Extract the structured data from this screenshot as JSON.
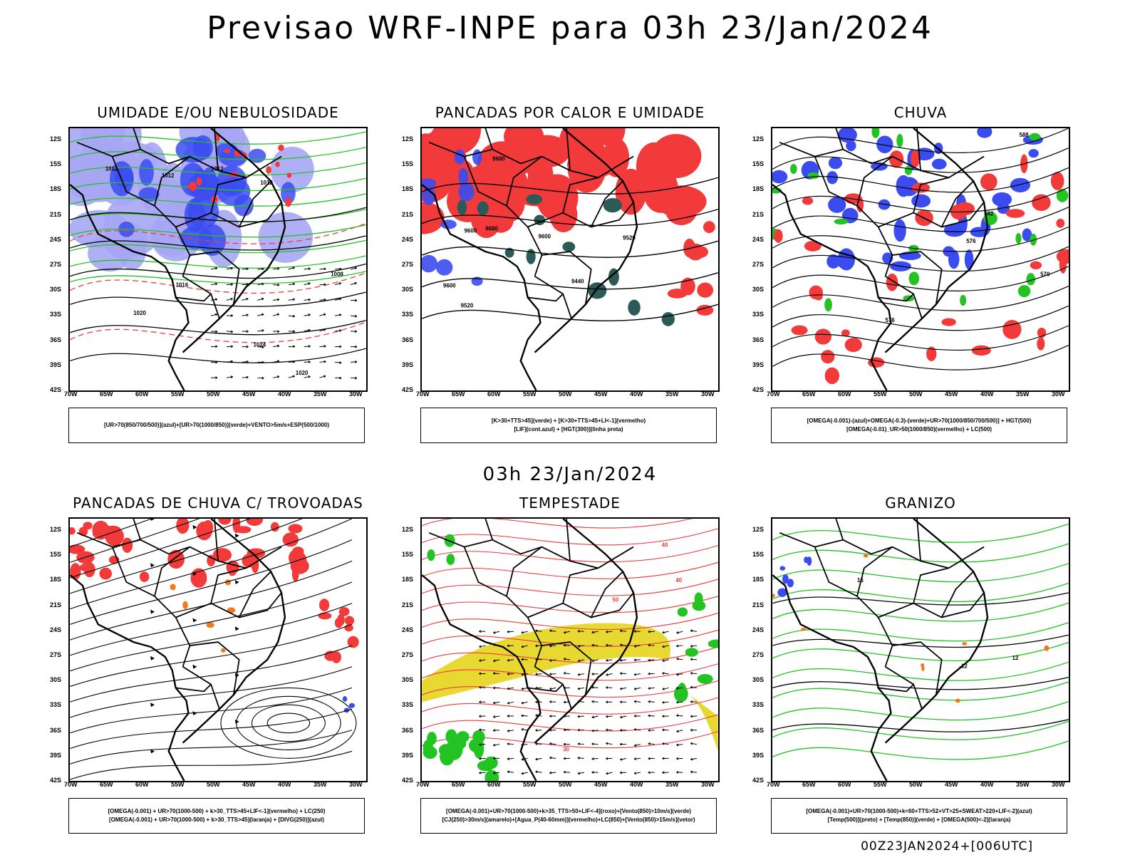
{
  "header": {
    "title": "Previsao WRF-INPE  para 03h 23/Jan/2024",
    "mid_date": "03h 23/Jan/2024",
    "footer": "00Z23JAN2024+[006UTC]"
  },
  "axes": {
    "lat_labels": [
      "12S",
      "15S",
      "18S",
      "21S",
      "24S",
      "27S",
      "30S",
      "33S",
      "36S",
      "39S",
      "42S"
    ],
    "lon_labels": [
      "70W",
      "65W",
      "60W",
      "55W",
      "50W",
      "45W",
      "40W",
      "35W",
      "30W"
    ]
  },
  "panels": [
    {
      "title": "UMIDADE E/OU NEBULOSIDADE",
      "caption": [
        "[UR>70(850/700/500)](azul)+[UR>70(1000/850)](verde)+VENTO>5m/s+ESP(500/1000)"
      ],
      "contour_labels": [
        "1012",
        "1012",
        "1012",
        "1012",
        "1016",
        "1020",
        "1024",
        "1020",
        "1008"
      ]
    },
    {
      "title": "PANCADAS POR CALOR E UMIDADE",
      "caption": [
        "[K>30+TTS>45](verde) + [K>30+TTS>45+LI<-1](vermelho)",
        "[LIF](cont.azul) + [HGT(300)](linha preta)"
      ],
      "contour_labels": [
        "9680",
        "9600",
        "9680",
        "9600",
        "9520",
        "9440",
        "9600",
        "9520"
      ]
    },
    {
      "title": "CHUVA",
      "caption": [
        "[OMEGA(-0.001)-(azul)+OMEGA(-0.3)-(verde)+UR>70(1000/850/700/500)] + HGT(500)",
        "[OMEGA(-0.01)_UR>50(1000/850)(vermelho) + LC(500)"
      ],
      "contour_labels": [
        "588",
        "582",
        "576",
        "576",
        "570"
      ]
    },
    {
      "title": "PANCADAS DE CHUVA C/ TROVOADAS",
      "caption": [
        "[OMEGA(-0.001) + UR>70(1000-500) + k>30_TTS>45+LIF<-1](vermelho) + LC(250)",
        "[OMEGA(-0.001) + UR>70(1000-500) + k>30_TTS>45](laranja) + [DIVG(250)](azul)"
      ],
      "contour_labels": []
    },
    {
      "title": "TEMPESTADE",
      "caption": [
        "[OMEGA(-0.001)+UR>70(1000-500)+k>35_TTS>50+LIF<-4](roxo)+[Vento(850)>10m/s](verde)",
        "[CJ(250)>30m/s](amarelo)+[Agua_P(40-60mm)](vermelho)+LC(850)+[Vento(850)>15m/s](vetor)"
      ],
      "contour_labels": [
        "50",
        "40",
        "40",
        "30"
      ]
    },
    {
      "title": "GRANIZO",
      "caption": [
        "[OMEGA(-0.001)+UR>70(1000-500)+k<60+TTS>52+VT>25+SWEAT>220+LIF<-2](azul)",
        "[Temp(500)](preto) + [Temp(850)](verde) + [OMEGA(500)<-2](laranja)"
      ],
      "contour_labels": [
        "-12",
        "16",
        "12"
      ]
    }
  ],
  "colors": {
    "blue": "#3a4cf0",
    "lightblue": "#a6a6f5",
    "green": "#22c322",
    "red": "#f23a3a",
    "darkteal": "#2c5a56",
    "yellow": "#e8d832",
    "orange": "#f07a1e"
  }
}
